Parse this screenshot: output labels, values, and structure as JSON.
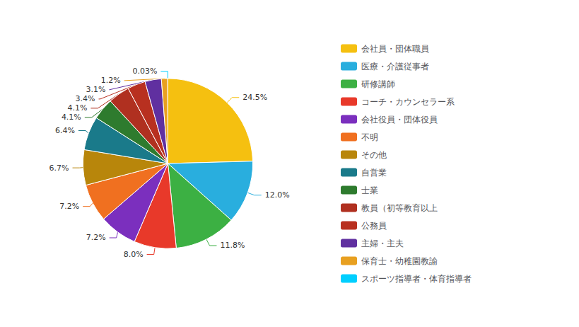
{
  "chart_data": {
    "type": "pie",
    "categories": [
      "会社員・団体職員",
      "医療・介護従事者",
      "研修講師",
      "コーチ・カウンセラー系",
      "会社役員・団体役員",
      "不明",
      "その他",
      "自営業",
      "士業",
      "教員（初等教育以上",
      "公務員",
      "主婦・主夫",
      "保育士・幼稚園教諭",
      "スポーツ指導者・体育指導者"
    ],
    "values": [
      24.5,
      12.0,
      11.8,
      8.0,
      7.2,
      7.2,
      6.7,
      6.4,
      4.1,
      4.1,
      3.4,
      3.1,
      1.2,
      0.03
    ],
    "value_labels": [
      "24.5%",
      "12.0%",
      "11.8%",
      "8.0%",
      "7.2%",
      "7.2%",
      "6.7%",
      "6.4%",
      "4.1%",
      "4.1%",
      "3.4%",
      "3.1%",
      "1.2%",
      "0.03%"
    ],
    "colors": [
      "#F5C010",
      "#29AEDE",
      "#3CB043",
      "#E8392A",
      "#7B2FBE",
      "#F07020",
      "#B8860B",
      "#1A7A8A",
      "#2E7B2E",
      "#B03020",
      "#B83020",
      "#6030A0",
      "#E8A020",
      "#00CFFF"
    ],
    "data_labels": true,
    "legend": "right"
  }
}
